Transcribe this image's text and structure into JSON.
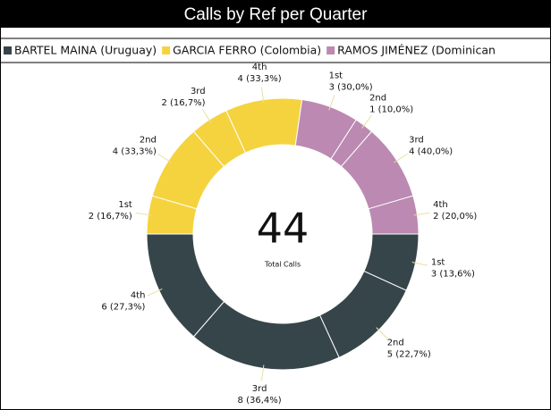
{
  "chart_data": {
    "type": "donut",
    "title": "Calls by Ref per Quarter",
    "center_value": 44,
    "center_label": "Total Calls",
    "series": [
      {
        "name": "BARTEL MAINA (Uruguay)",
        "color": "#36454a",
        "categories": [
          "1st",
          "2nd",
          "3rd",
          "4th"
        ],
        "values": [
          3,
          5,
          8,
          6
        ],
        "value_labels": [
          "3 (13,6%)",
          "5 (22,7%)",
          "8 (36,4%)",
          "6 (27,3%)"
        ]
      },
      {
        "name": "GARCIA FERRO (Colombia)",
        "color": "#f5d33f",
        "categories": [
          "1st",
          "2nd",
          "3rd",
          "4th"
        ],
        "values": [
          2,
          4,
          2,
          4
        ],
        "value_labels": [
          "2 (16,7%)",
          "4 (33,3%)",
          "2 (16,7%)",
          "4 (33,3%)"
        ]
      },
      {
        "name": "RAMOS JIMÉNEZ (Dominican",
        "color": "#bb89b1",
        "categories": [
          "1st",
          "2nd",
          "3rd",
          "4th"
        ],
        "values": [
          3,
          1,
          4,
          2
        ],
        "value_labels": [
          "3 (30,0%)",
          "1 (10,0%)",
          "4 (40,0%)",
          "2 (20,0%)"
        ]
      }
    ]
  }
}
